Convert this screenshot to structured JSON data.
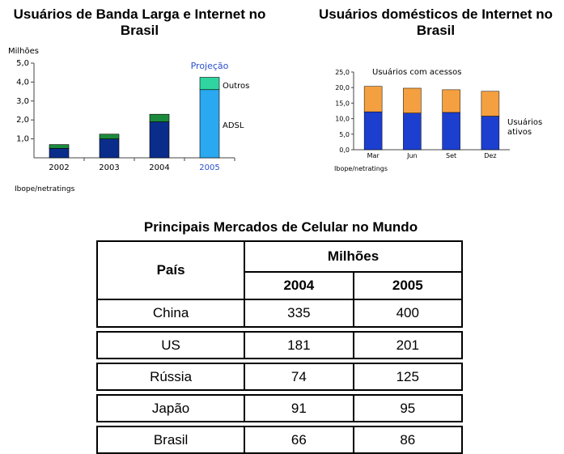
{
  "chart_data": [
    {
      "type": "bar",
      "title": "Usuários de Banda Larga e Internet no Brasil",
      "ylabel": "Milhões",
      "categories": [
        "2002",
        "2003",
        "2004",
        "2005"
      ],
      "series": [
        {
          "name": "ADSL",
          "values": [
            0.5,
            1.0,
            1.9,
            3.6
          ]
        },
        {
          "name": "Outros",
          "values": [
            0.2,
            0.25,
            0.4,
            0.65
          ]
        }
      ],
      "yticks": [
        "1,0",
        "2,0",
        "3,0",
        "4,0",
        "5,0"
      ],
      "ylim": [
        0,
        5
      ],
      "annotation": "Projeção",
      "highlight_category": "2005",
      "source": "Ibope/netratings",
      "colors": {
        "adsl": "#0a2d8c",
        "outros": "#1c8a3c",
        "adsl_projection": "#2aa8f0",
        "outros_projection": "#2fd4a0",
        "highlight_text": "#2a4fcc"
      }
    },
    {
      "type": "bar",
      "title": "Usuários domésticos de Internet no Brasil",
      "categories": [
        "Mar",
        "Jun",
        "Set",
        "Dez"
      ],
      "series": [
        {
          "name": "Usuários ativos",
          "values": [
            12.2,
            11.8,
            12.0,
            10.8
          ]
        },
        {
          "name": "Usuários com acessos",
          "values": [
            20.4,
            19.8,
            19.3,
            18.8
          ]
        }
      ],
      "yticks": [
        "0,0",
        "5,0",
        "10,0",
        "15,0",
        "20,0",
        "25,0"
      ],
      "ylim": [
        0,
        25
      ],
      "source": "Ibope/netratings",
      "colors": {
        "ativos": "#1c3fcf",
        "acessos": "#f5a040"
      }
    }
  ],
  "table": {
    "title": "Principais Mercados de Celular no Mundo",
    "header_country": "País",
    "header_group": "Milhões",
    "years": [
      "2004",
      "2005"
    ],
    "rows": [
      {
        "country": "China",
        "v2004": "335",
        "v2005": "400"
      },
      {
        "country": "US",
        "v2004": "181",
        "v2005": "201"
      },
      {
        "country": "Rússia",
        "v2004": "74",
        "v2005": "125"
      },
      {
        "country": "Japão",
        "v2004": "91",
        "v2005": "95"
      },
      {
        "country": "Brasil",
        "v2004": "66",
        "v2005": "86"
      }
    ]
  }
}
